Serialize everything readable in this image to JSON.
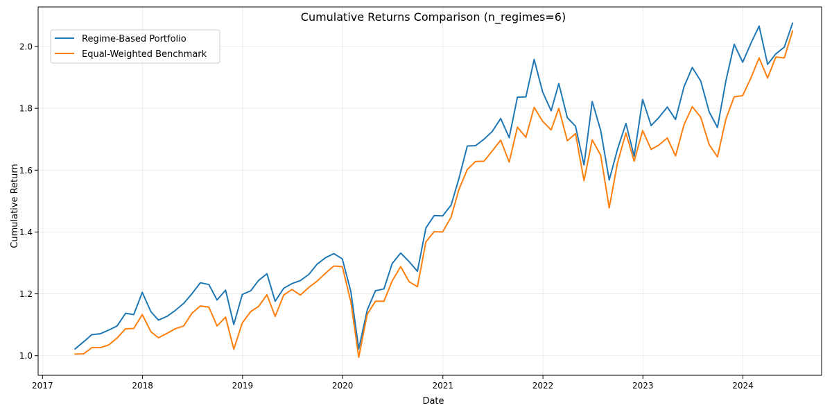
{
  "chart_data": {
    "type": "line",
    "title": "Cumulative Returns Comparison (n_regimes=6)",
    "xlabel": "Date",
    "ylabel": "Cumulative Return",
    "xlim": [
      "2016-12-16",
      "2024-10-14"
    ],
    "ylim": [
      0.9366,
      2.1278
    ],
    "x_ticks": [
      "2017",
      "2018",
      "2019",
      "2020",
      "2021",
      "2022",
      "2023",
      "2024"
    ],
    "y_ticks": [
      "1.0",
      "1.2",
      "1.4",
      "1.6",
      "1.8",
      "2.0"
    ],
    "grid": true,
    "legend_position": "top-left",
    "x": [
      "2017-04-30",
      "2017-05-31",
      "2017-06-30",
      "2017-07-31",
      "2017-08-31",
      "2017-09-30",
      "2017-10-31",
      "2017-11-30",
      "2017-12-31",
      "2018-01-31",
      "2018-02-28",
      "2018-03-31",
      "2018-04-30",
      "2018-05-31",
      "2018-06-30",
      "2018-07-31",
      "2018-08-31",
      "2018-09-30",
      "2018-10-31",
      "2018-11-30",
      "2018-12-31",
      "2019-01-31",
      "2019-02-28",
      "2019-03-31",
      "2019-04-30",
      "2019-05-31",
      "2019-06-30",
      "2019-07-31",
      "2019-08-31",
      "2019-09-30",
      "2019-10-31",
      "2019-11-30",
      "2019-12-31",
      "2020-01-31",
      "2020-02-29",
      "2020-03-31",
      "2020-04-30",
      "2020-05-31",
      "2020-06-30",
      "2020-07-31",
      "2020-08-31",
      "2020-09-30",
      "2020-10-31",
      "2020-11-30",
      "2020-12-31",
      "2021-01-31",
      "2021-02-28",
      "2021-03-31",
      "2021-04-30",
      "2021-05-31",
      "2021-06-30",
      "2021-07-31",
      "2021-08-31",
      "2021-09-30",
      "2021-10-31",
      "2021-11-30",
      "2021-12-31",
      "2022-01-31",
      "2022-02-28",
      "2022-03-31",
      "2022-04-30",
      "2022-05-31",
      "2022-06-30",
      "2022-07-31",
      "2022-08-31",
      "2022-09-30",
      "2022-10-31",
      "2022-11-30",
      "2022-12-31",
      "2023-01-31",
      "2023-02-28",
      "2023-03-31",
      "2023-04-30",
      "2023-05-31",
      "2023-06-30",
      "2023-07-31",
      "2023-08-31",
      "2023-09-30",
      "2023-10-31",
      "2023-11-30",
      "2023-12-31",
      "2024-01-31",
      "2024-02-29",
      "2024-03-31",
      "2024-04-30",
      "2024-05-31",
      "2024-06-30"
    ],
    "series": [
      {
        "name": "Regime-Based Portfolio",
        "color": "#1f77b4",
        "values": [
          1.022,
          1.045,
          1.068,
          1.071,
          1.083,
          1.096,
          1.137,
          1.133,
          1.205,
          1.143,
          1.115,
          1.127,
          1.146,
          1.169,
          1.2,
          1.236,
          1.23,
          1.18,
          1.212,
          1.101,
          1.198,
          1.21,
          1.243,
          1.265,
          1.176,
          1.218,
          1.233,
          1.243,
          1.263,
          1.296,
          1.317,
          1.33,
          1.313,
          1.208,
          1.022,
          1.148,
          1.21,
          1.216,
          1.298,
          1.332,
          1.304,
          1.273,
          1.413,
          1.453,
          1.452,
          1.487,
          1.571,
          1.678,
          1.679,
          1.7,
          1.725,
          1.767,
          1.705,
          1.836,
          1.837,
          1.958,
          1.853,
          1.792,
          1.88,
          1.77,
          1.742,
          1.617,
          1.822,
          1.728,
          1.568,
          1.667,
          1.751,
          1.645,
          1.829,
          1.744,
          1.77,
          1.804,
          1.764,
          1.87,
          1.932,
          1.888,
          1.788,
          1.738,
          1.89,
          2.007,
          1.949,
          2.012,
          2.066,
          1.942,
          1.976,
          1.998,
          2.075
        ]
      },
      {
        "name": "Equal-Weighted Benchmark",
        "color": "#ff7f0e",
        "values": [
          1.005,
          1.006,
          1.026,
          1.026,
          1.035,
          1.057,
          1.087,
          1.088,
          1.133,
          1.078,
          1.058,
          1.072,
          1.087,
          1.096,
          1.137,
          1.161,
          1.157,
          1.096,
          1.125,
          1.021,
          1.106,
          1.143,
          1.159,
          1.197,
          1.127,
          1.196,
          1.214,
          1.196,
          1.221,
          1.241,
          1.267,
          1.29,
          1.288,
          1.175,
          0.995,
          1.134,
          1.176,
          1.176,
          1.242,
          1.288,
          1.239,
          1.223,
          1.368,
          1.401,
          1.4,
          1.448,
          1.536,
          1.602,
          1.628,
          1.629,
          1.662,
          1.697,
          1.626,
          1.739,
          1.706,
          1.803,
          1.758,
          1.73,
          1.8,
          1.695,
          1.718,
          1.566,
          1.698,
          1.648,
          1.478,
          1.623,
          1.72,
          1.629,
          1.728,
          1.667,
          1.681,
          1.704,
          1.646,
          1.747,
          1.805,
          1.771,
          1.682,
          1.643,
          1.766,
          1.837,
          1.841,
          1.9,
          1.963,
          1.898,
          1.966,
          1.963,
          2.05
        ]
      }
    ]
  }
}
